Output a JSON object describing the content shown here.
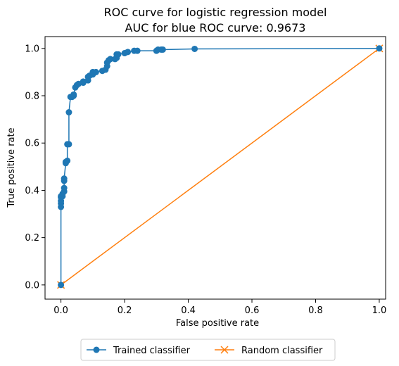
{
  "chart_data": {
    "type": "line",
    "title": "ROC curve for logistic regression model",
    "subtitle": "AUC for blue ROC curve: 0.9673",
    "xlabel": "False positive rate",
    "ylabel": "True positive rate",
    "xlim": [
      -0.05,
      1.02
    ],
    "ylim": [
      -0.06,
      1.05
    ],
    "xticks": [
      0.0,
      0.2,
      0.4,
      0.6,
      0.8,
      1.0
    ],
    "xtick_labels": [
      "0.0",
      "0.2",
      "0.4",
      "0.6",
      "0.8",
      "1.0"
    ],
    "yticks": [
      0.0,
      0.2,
      0.4,
      0.6,
      0.8,
      1.0
    ],
    "ytick_labels": [
      "0.0",
      "0.2",
      "0.4",
      "0.6",
      "0.8",
      "1.0"
    ],
    "grid": false,
    "legend_placement": "bottom-center, below plot",
    "series": [
      {
        "name": "Trained classifier",
        "color": "#1f77b4",
        "marker": "circle",
        "x": [
          0.0,
          0.0,
          0.0,
          0.0,
          0.0,
          0.0,
          0.005,
          0.005,
          0.01,
          0.01,
          0.01,
          0.01,
          0.015,
          0.015,
          0.02,
          0.02,
          0.025,
          0.025,
          0.03,
          0.035,
          0.04,
          0.04,
          0.045,
          0.05,
          0.055,
          0.07,
          0.07,
          0.085,
          0.085,
          0.09,
          0.1,
          0.1,
          0.11,
          0.13,
          0.14,
          0.145,
          0.145,
          0.15,
          0.155,
          0.17,
          0.175,
          0.175,
          0.18,
          0.2,
          0.21,
          0.23,
          0.24,
          0.3,
          0.305,
          0.315,
          0.32,
          0.42,
          1.0
        ],
        "y": [
          0.0,
          0.33,
          0.345,
          0.355,
          0.37,
          0.375,
          0.375,
          0.385,
          0.395,
          0.41,
          0.44,
          0.45,
          0.515,
          0.52,
          0.525,
          0.595,
          0.595,
          0.73,
          0.795,
          0.795,
          0.8,
          0.805,
          0.835,
          0.845,
          0.85,
          0.855,
          0.86,
          0.865,
          0.88,
          0.885,
          0.89,
          0.9,
          0.9,
          0.905,
          0.91,
          0.925,
          0.94,
          0.95,
          0.955,
          0.955,
          0.96,
          0.975,
          0.975,
          0.98,
          0.985,
          0.99,
          0.99,
          0.99,
          0.995,
          0.995,
          0.995,
          0.998,
          1.0
        ]
      },
      {
        "name": "Random classifier",
        "color": "#ff7f0e",
        "marker": "x",
        "x": [
          0.0,
          1.0
        ],
        "y": [
          0.0,
          1.0
        ]
      }
    ]
  }
}
